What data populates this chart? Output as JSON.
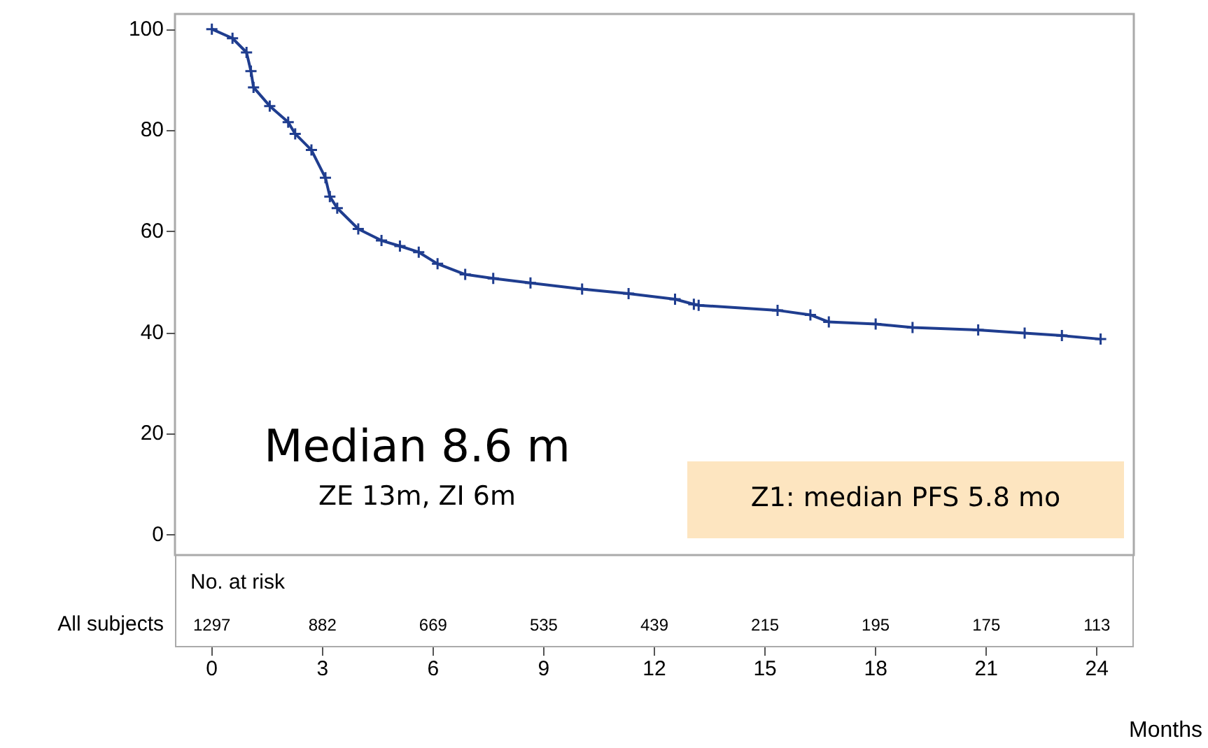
{
  "chart_data": {
    "type": "line",
    "xlabel": "Months",
    "series": [
      {
        "color": "#1f3d8f",
        "x": [
          0,
          0.56,
          0.94,
          1.06,
          1.13,
          1.57,
          2.07,
          2.26,
          2.7,
          3.08,
          3.2,
          3.4,
          3.97,
          4.6,
          5.1,
          5.61,
          6.12,
          6.87,
          7.63,
          8.64,
          10.04,
          11.3,
          12.56,
          13.07,
          13.2,
          15.34,
          16.23,
          16.73,
          18.0,
          19.0,
          20.78,
          22.04,
          23.05,
          24.1
        ],
        "values": [
          100,
          98.2,
          95.4,
          91.7,
          88.5,
          84.8,
          81.6,
          79.3,
          76.1,
          70.6,
          66.9,
          64.6,
          60.5,
          58.2,
          57.1,
          55.9,
          53.6,
          51.5,
          50.7,
          49.8,
          48.6,
          47.7,
          46.6,
          45.6,
          45.4,
          44.4,
          43.5,
          42.1,
          41.7,
          41.0,
          40.5,
          39.9,
          39.4,
          38.7
        ]
      }
    ],
    "xlim": [
      -1,
      25
    ],
    "xticks": [
      0,
      3,
      6,
      9,
      12,
      15,
      18,
      21,
      24
    ],
    "ylim": [
      -4,
      103
    ],
    "yticks": [
      0,
      20,
      40,
      60,
      80,
      100
    ],
    "grid": false,
    "marker": "cross",
    "line_style": "solid",
    "annotations": [
      "Median 8.6 m",
      "ZE 13m, ZI 6m",
      "Z1: median PFS 5.8 mo",
      "No. at risk",
      "All subjects",
      "1297",
      "882",
      "669",
      "535",
      "439",
      "215",
      "195",
      "175",
      "113"
    ]
  }
}
